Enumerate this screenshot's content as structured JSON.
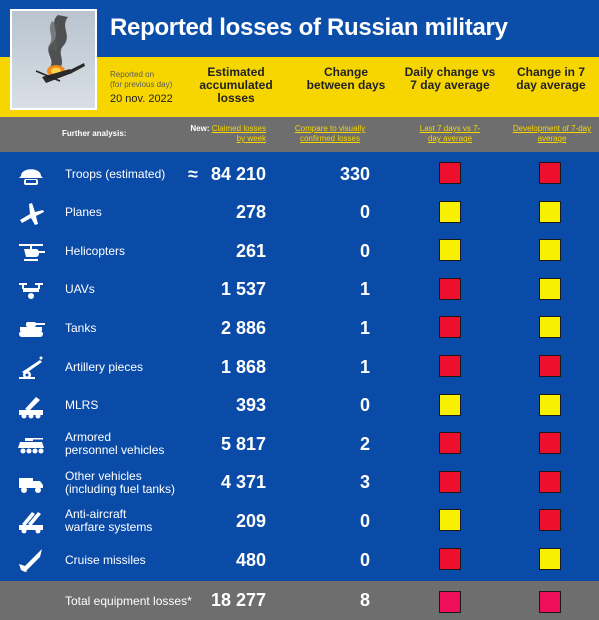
{
  "header": {
    "title": "Reported losses of Russian military",
    "reported_on": "Reported on",
    "reported_note": "(for previous day)",
    "date": "20 nov. 2022",
    "columns": [
      "Estimated accumulated losses",
      "Change between days",
      "Daily change vs 7 day average",
      "Change in 7 day average"
    ]
  },
  "subheader": {
    "further": "Further analysis:",
    "new_prefix": "New:",
    "link_weekly": "Claimed losses by week",
    "link_compare": "Compare to visually confirmed losses",
    "link_last7": "Last 7 days vs 7-day average",
    "link_development": "Development of 7-day average"
  },
  "colors": {
    "blue": "#0a4ba8",
    "yellow": "#f7d600",
    "grey": "#6e6e6e",
    "red": "#ee0e2e",
    "indicator_yellow": "#f7f000"
  },
  "rows": [
    {
      "label": "Troops (estimated)",
      "approx": "≈",
      "value": "84 210",
      "change": "330",
      "icon": "helmet-icon",
      "daily": "red",
      "trend": "red"
    },
    {
      "label": "Planes",
      "approx": "",
      "value": "278",
      "change": "0",
      "icon": "plane-icon",
      "daily": "yellow",
      "trend": "yellow"
    },
    {
      "label": "Helicopters",
      "approx": "",
      "value": "261",
      "change": "0",
      "icon": "helicopter-icon",
      "daily": "yellow",
      "trend": "yellow"
    },
    {
      "label": "UAVs",
      "approx": "",
      "value": "1 537",
      "change": "1",
      "icon": "drone-icon",
      "daily": "red",
      "trend": "yellow"
    },
    {
      "label": "Tanks",
      "approx": "",
      "value": "2 886",
      "change": "1",
      "icon": "tank-icon",
      "daily": "red",
      "trend": "yellow"
    },
    {
      "label": "Artillery pieces",
      "approx": "",
      "value": "1 868",
      "change": "1",
      "icon": "artillery-icon",
      "daily": "red",
      "trend": "red"
    },
    {
      "label": "MLRS",
      "approx": "",
      "value": "393",
      "change": "0",
      "icon": "mlrs-icon",
      "daily": "yellow",
      "trend": "yellow"
    },
    {
      "label": "Armored\npersonnel vehicles",
      "approx": "",
      "value": "5 817",
      "change": "2",
      "icon": "apc-icon",
      "daily": "red",
      "trend": "red"
    },
    {
      "label": "Other vehicles\n(including fuel tanks)",
      "approx": "",
      "value": "4 371",
      "change": "3",
      "icon": "truck-icon",
      "daily": "red",
      "trend": "red"
    },
    {
      "label": "Anti-aircraft\nwarfare systems",
      "approx": "",
      "value": "209",
      "change": "0",
      "icon": "anti-aircraft-icon",
      "daily": "yellow",
      "trend": "red"
    },
    {
      "label": "Cruise missiles",
      "approx": "",
      "value": "480",
      "change": "0",
      "icon": "missile-icon",
      "daily": "red",
      "trend": "yellow"
    }
  ],
  "total": {
    "label": "Total equipment losses*",
    "value": "18 277",
    "change": "8",
    "daily": "pink",
    "trend": "pink"
  }
}
